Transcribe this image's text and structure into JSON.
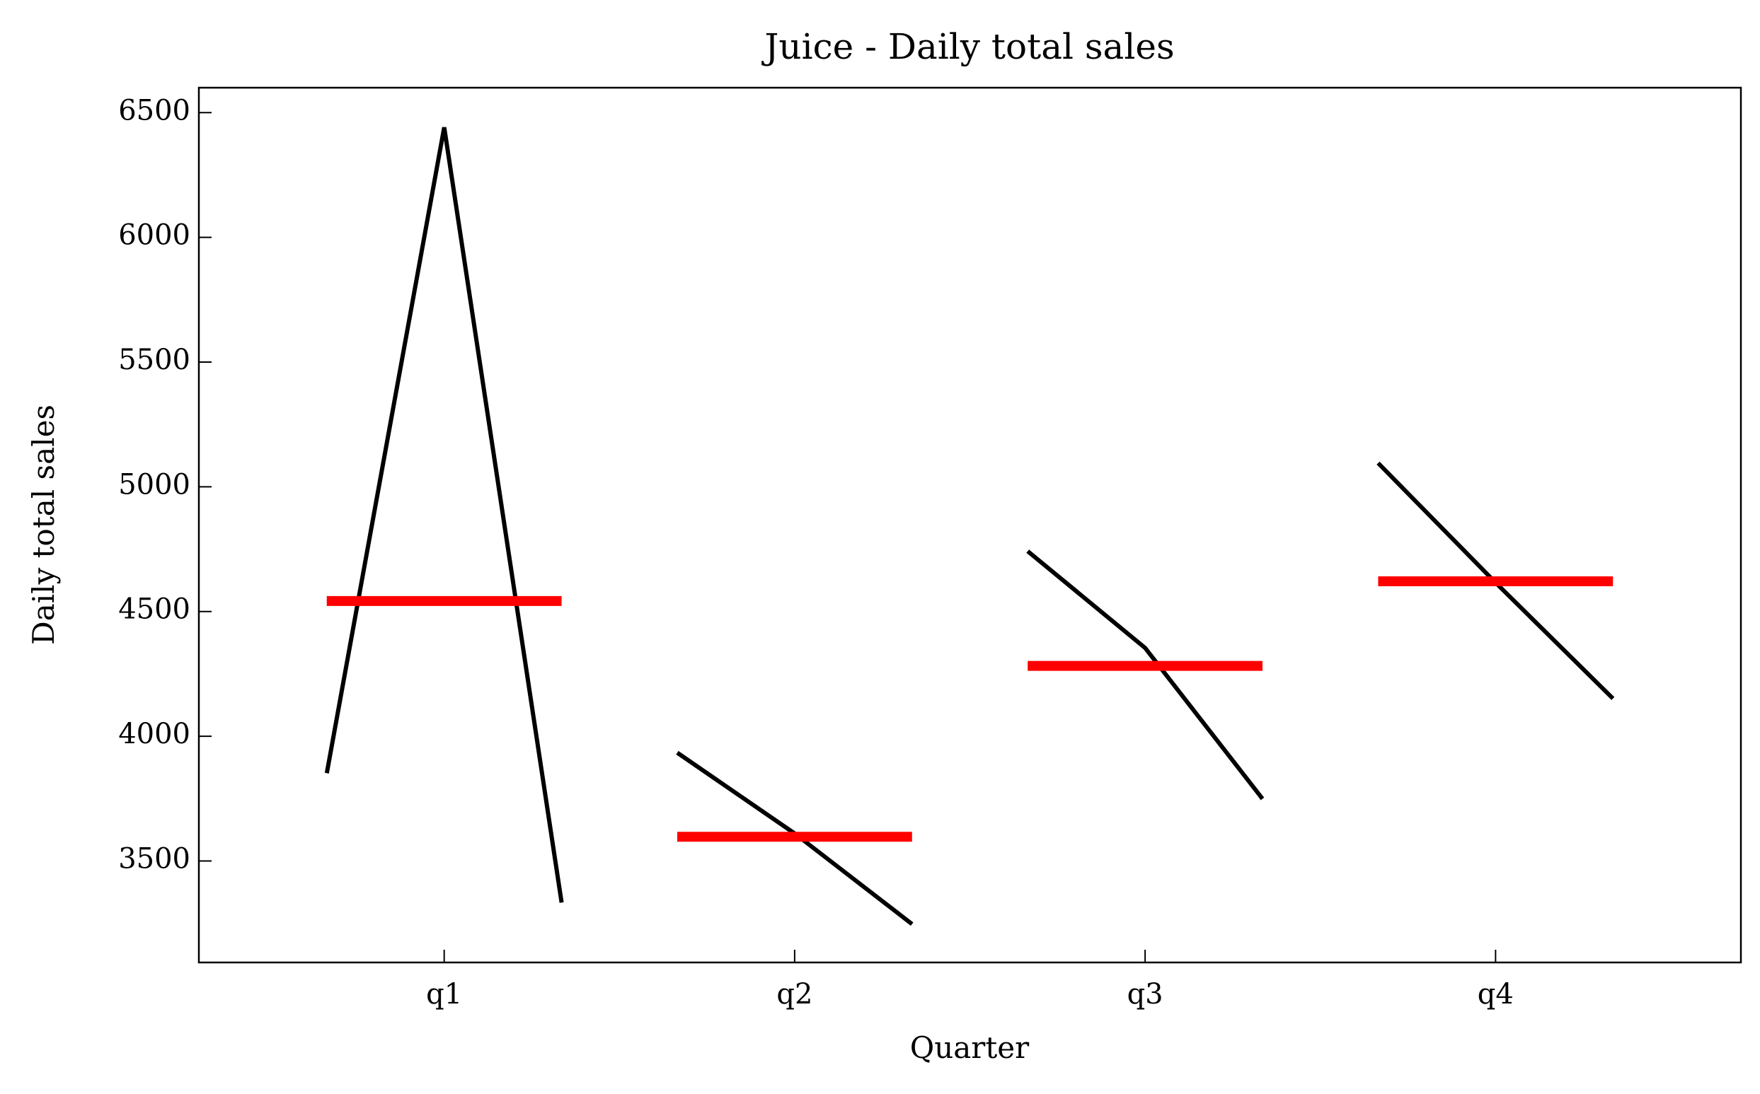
{
  "chart_data": {
    "type": "line",
    "title": "Juice - Daily total sales",
    "xlabel": "Quarter",
    "ylabel": "Daily total sales",
    "categories": [
      "q1",
      "q2",
      "q3",
      "q4"
    ],
    "values": [
      [
        3852,
        6441,
        3333
      ],
      [
        3934,
        3610,
        3247
      ],
      [
        4742,
        4354,
        3749
      ],
      [
        5095,
        4616,
        4151
      ]
    ],
    "means": [
      4542,
      3597,
      4282,
      4621
    ],
    "color": "#000000",
    "mean_color": "#ff0000",
    "ylim": [
      3093,
      6600
    ],
    "yticks": [
      3500,
      4000,
      4500,
      5000,
      5500,
      6000,
      6500
    ]
  }
}
